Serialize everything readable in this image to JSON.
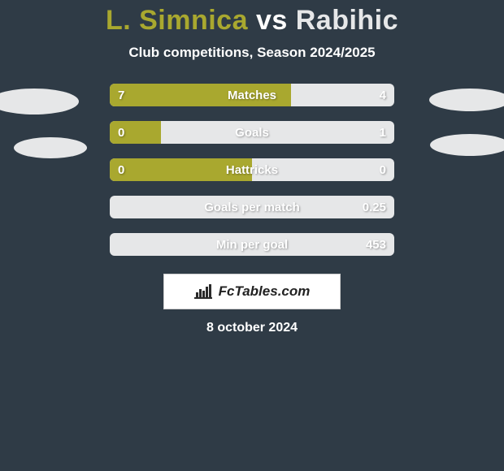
{
  "background_color": "#2f3b46",
  "title": {
    "player1": "L. Simnica",
    "vs": "vs",
    "player2": "Rabihic",
    "player1_color": "#a9a82f",
    "vs_color": "#ffffff",
    "player2_color": "#e6e7e8"
  },
  "subtitle": {
    "text": "Club competitions, Season 2024/2025",
    "color": "#ffffff"
  },
  "player_colors": {
    "left": "#a9a82f",
    "right": "#e6e7e8"
  },
  "bar_style": {
    "height": 28,
    "radius": 6,
    "text_color": "#ffffff",
    "label_fontsize": 15
  },
  "oval_color": "#e6e7e8",
  "stats": [
    {
      "label": "Matches",
      "left_val": "7",
      "right_val": "4",
      "left_pct": 63.6,
      "has_right_val": true,
      "show_left_val": true
    },
    {
      "label": "Goals",
      "left_val": "0",
      "right_val": "1",
      "left_pct": 18.0,
      "has_right_val": true,
      "show_left_val": true
    },
    {
      "label": "Hattricks",
      "left_val": "0",
      "right_val": "0",
      "left_pct": 50.0,
      "has_right_val": true,
      "show_left_val": true
    },
    {
      "label": "Goals per match",
      "left_val": "",
      "right_val": "0.25",
      "left_pct": 0.0,
      "has_right_val": true,
      "show_left_val": false
    },
    {
      "label": "Min per goal",
      "left_val": "",
      "right_val": "453",
      "left_pct": 0.0,
      "has_right_val": true,
      "show_left_val": false
    }
  ],
  "branding": {
    "text": "FcTables.com",
    "bg": "#ffffff",
    "chart_color": "#2b2b2b"
  },
  "date": {
    "text": "8 october 2024",
    "color": "#ffffff"
  }
}
